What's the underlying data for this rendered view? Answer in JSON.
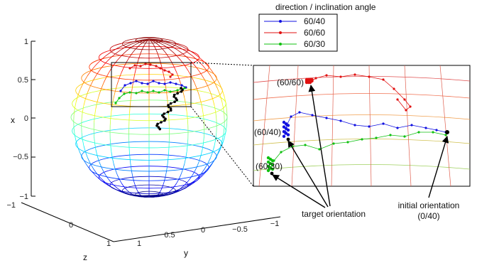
{
  "chart_data": {
    "type": "line",
    "legend": {
      "title": "direction / inclination angle",
      "placement": "top-center",
      "entries": [
        {
          "label": "60/40",
          "color": "#1010e0"
        },
        {
          "label": "60/60",
          "color": "#e01010"
        },
        {
          "label": "60/30",
          "color": "#10c010"
        }
      ]
    },
    "axes": {
      "xlabel": "x",
      "ylabel": "y",
      "zlabel": "z",
      "x_ticks": [
        "1",
        "0.5",
        "0",
        "−0.5",
        "−1"
      ],
      "y_ticks": [
        "0.5",
        "0",
        "−0.5",
        "−1"
      ],
      "z_ticks": [
        "−1",
        "0",
        "1"
      ],
      "y_ticks_full": [
        "1",
        "0.5",
        "0",
        "−0.5",
        "−1"
      ],
      "z_ticks_full": [
        "−1",
        "0",
        "1"
      ],
      "xlim": [
        -1,
        1
      ],
      "ylim": [
        -1,
        1
      ],
      "zlim": [
        -1,
        1
      ]
    },
    "colormap": "jet",
    "annotations": {
      "label_6060": "(60/60)",
      "label_6040": "(60/40)",
      "label_6030": "(60/30)",
      "target": "target orientation",
      "initial": "initial orientation",
      "initial_value": "(0/40)"
    }
  }
}
